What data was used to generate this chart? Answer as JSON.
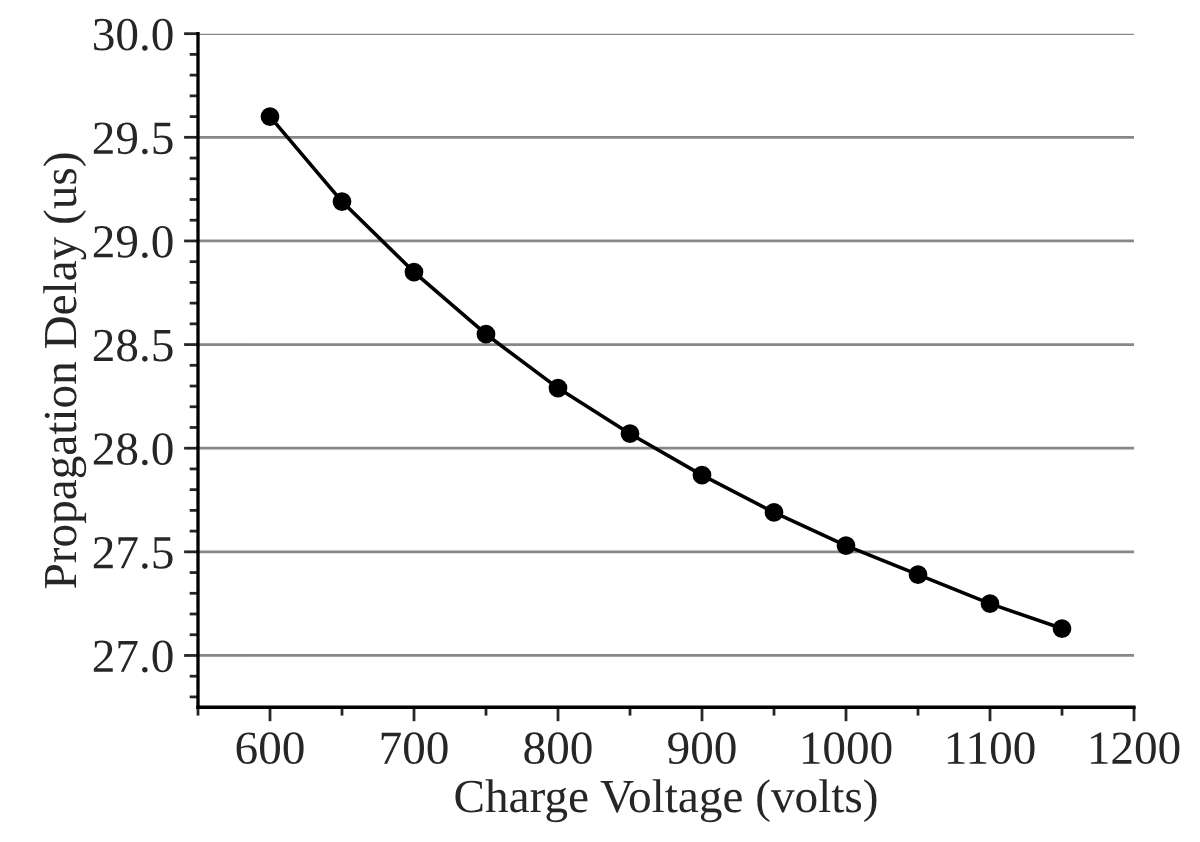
{
  "chart_data": {
    "type": "line",
    "xlabel": "Charge Voltage (volts)",
    "ylabel": "Propagation Delay (us)",
    "x": [
      600,
      650,
      700,
      750,
      800,
      850,
      900,
      950,
      1000,
      1050,
      1100,
      1150
    ],
    "series": [
      {
        "color": "#000000",
        "values": [
          29.6,
          29.19,
          28.85,
          28.55,
          28.29,
          28.07,
          27.87,
          27.69,
          27.53,
          27.39,
          27.25,
          27.13
        ]
      }
    ],
    "xlim": [
      550,
      1200
    ],
    "xticks": [
      600,
      700,
      800,
      900,
      1000,
      1100,
      1200
    ],
    "ylim": [
      26.75,
      30.0
    ],
    "yticks": [
      {
        "value": 27.0,
        "label": "27.0"
      },
      {
        "value": 27.5,
        "label": "27.5"
      },
      {
        "value": 28.0,
        "label": "28.0"
      },
      {
        "value": 28.5,
        "label": "28.5"
      },
      {
        "value": 29.0,
        "label": "29.0"
      },
      {
        "value": 29.5,
        "label": "29.5"
      },
      {
        "value": 30.0,
        "label": "30.0"
      }
    ],
    "grid": "y",
    "marker": "circle",
    "line_style": "solid"
  }
}
